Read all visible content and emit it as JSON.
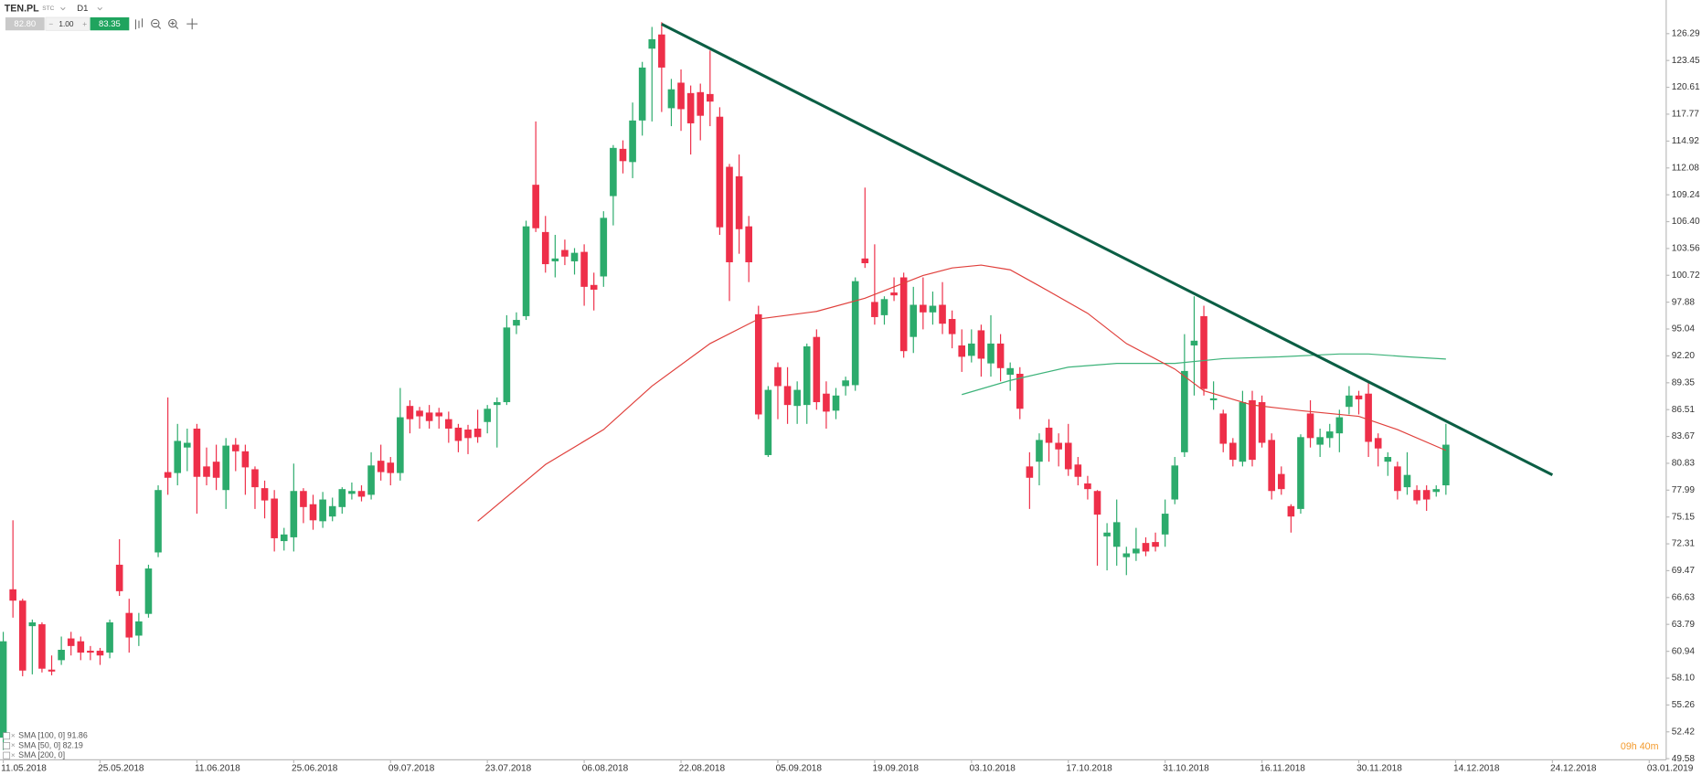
{
  "toolbar": {
    "symbol": "TEN.PL",
    "market": "STC",
    "interval": "D1",
    "bid": "82.80",
    "volume": "1.00",
    "ask": "83.35"
  },
  "chart_data": {
    "type": "candlestick",
    "categories": [
      "11.05.2018",
      null,
      null,
      null,
      null,
      null,
      null,
      null,
      null,
      null,
      "25.05.2018",
      null,
      null,
      null,
      null,
      null,
      null,
      null,
      null,
      null,
      "11.06.2018",
      null,
      null,
      null,
      null,
      null,
      null,
      null,
      null,
      null,
      "25.06.2018",
      null,
      null,
      null,
      null,
      null,
      null,
      null,
      null,
      null,
      "09.07.2018",
      null,
      null,
      null,
      null,
      null,
      null,
      null,
      null,
      null,
      "23.07.2018",
      null,
      null,
      null,
      null,
      null,
      null,
      null,
      null,
      null,
      "06.08.2018",
      null,
      null,
      null,
      null,
      null,
      null,
      null,
      null,
      null,
      "22.08.2018",
      null,
      null,
      null,
      null,
      null,
      null,
      null,
      null,
      null,
      "05.09.2018",
      null,
      null,
      null,
      null,
      null,
      null,
      null,
      null,
      null,
      "19.09.2018",
      null,
      null,
      null,
      null,
      null,
      null,
      null,
      null,
      null,
      "03.10.2018",
      null,
      null,
      null,
      null,
      null,
      null,
      null,
      null,
      null,
      "17.10.2018",
      null,
      null,
      null,
      null,
      null,
      null,
      null,
      null,
      null,
      "31.10.2018",
      null,
      null,
      null,
      null,
      null,
      null,
      null,
      null,
      null,
      "16.11.2018",
      null,
      null,
      null,
      null,
      null,
      null,
      null,
      null,
      null,
      "30.11.2018",
      null,
      null,
      null,
      null,
      null,
      null,
      null,
      null,
      null,
      "14.12.2018",
      null,
      null,
      null,
      null,
      null,
      null,
      null,
      null,
      null,
      "24.12.2018",
      null,
      null,
      null,
      null,
      null,
      null,
      null,
      null,
      null,
      "03.01.2019",
      null
    ],
    "open": [
      51.8,
      67.5,
      66.3,
      63.6,
      63.8,
      59.0,
      60.0,
      62.3,
      62.0,
      61.0,
      61.0,
      60.8,
      70.1,
      65.0,
      62.6,
      64.9,
      71.4,
      79.9,
      79.8,
      82.5,
      84.5,
      80.5,
      81.0,
      78.0,
      82.8,
      82.1,
      80.2,
      78.2,
      77.1,
      72.6,
      73.0,
      77.9,
      76.5,
      74.7,
      75.2,
      76.2,
      77.6,
      77.9,
      77.5,
      81.1,
      80.9,
      79.8,
      86.9,
      86.4,
      86.2,
      86.2,
      85.5,
      84.6,
      84.4,
      84.5,
      85.2,
      87.0,
      87.3,
      95.4,
      96.4,
      110.3,
      105.3,
      102.2,
      103.4,
      102.2,
      103.2,
      99.7,
      100.6,
      109.1,
      114.1,
      112.7,
      117.1,
      124.7,
      126.2,
      118.4,
      121.1,
      120.0,
      120.1,
      119.9,
      117.5,
      112.2,
      111.2,
      105.9,
      96.6,
      81.7,
      91.0,
      89.0,
      86.9,
      87.0,
      94.2,
      88.2,
      86.4,
      89.0,
      89.1,
      102.5,
      97.9,
      96.5,
      98.9,
      100.5,
      94.2,
      97.6,
      96.8,
      97.6,
      96.1,
      93.3,
      92.2,
      94.9,
      91.4,
      93.5,
      90.2,
      90.3,
      80.5,
      81.0,
      84.6,
      83.0,
      83.0,
      80.7,
      78.7,
      77.9,
      73.1,
      72.0,
      70.9,
      71.3,
      72.4,
      72.5,
      73.3,
      77.0,
      82.0,
      93.3,
      96.4,
      87.5,
      86.1,
      83.0,
      81.0,
      87.5,
      87.3,
      83.3,
      79.7,
      76.3,
      76.0,
      86.1,
      82.8,
      83.5,
      84.0,
      86.8,
      88.0,
      88.2,
      83.5,
      81.0,
      80.5,
      78.3,
      78.0,
      78.0,
      77.8,
      78.5,
      null,
      null,
      null,
      null,
      null,
      null,
      null,
      null,
      null,
      null,
      null,
      null,
      null,
      null,
      null,
      null,
      null,
      null,
      null,
      null,
      null,
      null
    ],
    "high": [
      63.0,
      74.8,
      66.5,
      64.3,
      64.0,
      60.5,
      62.5,
      63.0,
      62.5,
      61.5,
      61.3,
      64.3,
      72.8,
      66.5,
      65.0,
      70.1,
      78.5,
      87.8,
      85.0,
      84.5,
      85.0,
      82.5,
      82.8,
      83.5,
      83.5,
      82.8,
      80.5,
      79.0,
      78.0,
      74.0,
      80.8,
      78.2,
      77.5,
      77.8,
      77.2,
      78.3,
      78.8,
      78.5,
      82.0,
      82.8,
      81.5,
      88.8,
      87.5,
      86.8,
      87.0,
      86.7,
      86.3,
      85.0,
      84.9,
      86.5,
      87.0,
      87.8,
      96.5,
      96.8,
      106.5,
      117.0,
      107.0,
      105.0,
      104.5,
      103.6,
      104.0,
      101.0,
      107.5,
      114.5,
      115.0,
      119.0,
      123.3,
      127.0,
      127.5,
      121.5,
      122.5,
      120.8,
      121.0,
      124.5,
      118.5,
      112.5,
      113.5,
      107.0,
      97.5,
      89.0,
      91.5,
      91.0,
      89.5,
      93.5,
      95.0,
      89.5,
      88.8,
      90.0,
      100.5,
      110.0,
      104.0,
      98.5,
      100.5,
      101.0,
      99.5,
      100.5,
      99.0,
      100.0,
      97.0,
      95.0,
      95.0,
      95.5,
      96.5,
      94.5,
      91.5,
      91.0,
      82.0,
      84.0,
      85.5,
      84.0,
      85.0,
      81.5,
      79.5,
      78.0,
      74.5,
      77.0,
      72.0,
      74.0,
      73.0,
      73.5,
      77.0,
      81.5,
      94.5,
      98.5,
      97.5,
      89.5,
      86.5,
      83.5,
      88.5,
      88.5,
      88.0,
      84.0,
      80.5,
      76.5,
      83.9,
      87.5,
      84.5,
      85.0,
      86.5,
      89.0,
      88.5,
      89.5,
      84.0,
      82.0,
      81.0,
      82.0,
      78.5,
      78.5,
      78.5,
      85.0,
      null,
      null,
      null,
      null,
      null,
      null,
      null,
      null,
      null,
      null,
      null,
      null,
      null,
      null,
      null,
      null,
      null,
      null,
      null,
      null,
      null,
      null
    ],
    "low": [
      50.5,
      64.5,
      58.3,
      58.5,
      58.7,
      58.4,
      59.5,
      60.5,
      60.0,
      60.0,
      59.5,
      60.2,
      66.8,
      60.8,
      61.5,
      64.5,
      70.9,
      77.5,
      78.5,
      80.0,
      75.5,
      78.5,
      78.0,
      76.0,
      80.0,
      77.5,
      76.0,
      75.0,
      71.5,
      71.6,
      71.5,
      74.5,
      73.8,
      74.0,
      74.7,
      75.5,
      77.0,
      76.8,
      77.0,
      79.0,
      78.5,
      79.0,
      84.0,
      84.5,
      84.5,
      84.5,
      83.0,
      82.0,
      81.8,
      83.0,
      84.0,
      82.5,
      87.0,
      94.5,
      96.0,
      105.3,
      101.0,
      100.5,
      101.8,
      100.8,
      97.5,
      97.0,
      99.5,
      106.0,
      111.5,
      111.0,
      115.5,
      117.0,
      118.0,
      116.5,
      116.0,
      113.5,
      115.0,
      116.5,
      105.0,
      98.0,
      103.0,
      100.0,
      85.5,
      81.5,
      85.5,
      85.0,
      85.0,
      85.0,
      86.5,
      84.5,
      85.5,
      88.0,
      88.5,
      101.5,
      95.5,
      95.5,
      98.0,
      92.0,
      92.5,
      95.0,
      95.5,
      94.5,
      93.0,
      90.5,
      91.5,
      90.0,
      90.0,
      89.5,
      88.5,
      85.5,
      76.0,
      78.5,
      81.0,
      80.5,
      79.5,
      78.5,
      77.0,
      70.0,
      69.5,
      70.0,
      69.0,
      70.5,
      71.0,
      71.5,
      72.0,
      76.5,
      81.5,
      88.0,
      88.0,
      86.5,
      82.0,
      80.5,
      80.5,
      80.5,
      82.5,
      77.0,
      77.5,
      73.5,
      75.5,
      82.5,
      81.5,
      82.5,
      82.0,
      86.0,
      86.0,
      81.5,
      80.5,
      79.5,
      77.0,
      77.5,
      76.5,
      75.8,
      77.3,
      77.5,
      null,
      null,
      null,
      null,
      null,
      null,
      null,
      null,
      null,
      null,
      null,
      null,
      null,
      null,
      null,
      null,
      null,
      null,
      null,
      null,
      null,
      null
    ],
    "close": [
      62.0,
      66.3,
      58.9,
      64.0,
      59.1,
      58.8,
      61.1,
      61.5,
      60.8,
      60.8,
      60.5,
      64.0,
      67.3,
      62.4,
      64.1,
      69.7,
      78.0,
      79.3,
      83.2,
      83.0,
      79.4,
      79.4,
      79.3,
      82.7,
      82.1,
      80.4,
      78.3,
      76.9,
      72.9,
      73.3,
      77.9,
      76.2,
      74.8,
      77.0,
      76.3,
      78.1,
      77.9,
      77.3,
      80.6,
      79.9,
      79.8,
      85.7,
      85.5,
      85.8,
      85.3,
      85.8,
      84.5,
      83.2,
      83.5,
      83.6,
      86.6,
      87.3,
      95.2,
      96.0,
      105.9,
      105.7,
      101.9,
      102.5,
      102.7,
      103.1,
      99.5,
      99.2,
      106.8,
      114.2,
      112.8,
      117.1,
      122.7,
      125.7,
      122.7,
      120.4,
      118.3,
      116.8,
      117.6,
      119.1,
      105.8,
      102.1,
      105.6,
      102.1,
      86.0,
      88.6,
      89.0,
      87.0,
      88.6,
      93.2,
      87.3,
      86.3,
      88.0,
      89.6,
      100.1,
      102.0,
      96.3,
      98.2,
      98.6,
      92.7,
      97.6,
      96.8,
      97.5,
      95.6,
      94.5,
      92.1,
      93.5,
      91.9,
      93.5,
      90.9,
      90.9,
      86.6,
      79.3,
      83.3,
      83.0,
      82.3,
      80.2,
      79.4,
      78.1,
      75.4,
      73.5,
      74.6,
      71.3,
      71.8,
      71.5,
      72.0,
      75.5,
      80.6,
      90.6,
      93.8,
      88.7,
      87.7,
      82.9,
      81.2,
      87.3,
      81.2,
      83.0,
      77.9,
      78.1,
      75.2,
      83.6,
      83.5,
      83.6,
      84.2,
      85.7,
      88.0,
      87.6,
      83.1,
      82.4,
      81.5,
      77.9,
      79.6,
      76.9,
      77.0,
      78.1,
      82.8,
      null,
      null,
      null,
      null,
      null,
      null,
      null,
      null,
      null,
      null,
      null,
      null,
      null,
      null,
      null,
      null,
      null,
      null,
      null,
      null,
      null,
      null
    ],
    "up_color": "#2cab6c",
    "down_color": "#ee2f49",
    "overlays": [
      {
        "name": "SMA [100, 0] 91.86",
        "color": "#3db37a",
        "x": [
          99,
          104,
          110,
          115,
          121,
          126,
          132,
          138,
          141,
          145,
          149
        ],
        "values": [
          88.1,
          89.6,
          91.0,
          91.4,
          91.4,
          91.9,
          92.1,
          92.4,
          92.4,
          92.1,
          91.86
        ]
      },
      {
        "name": "SMA [50, 0] 82.19",
        "color": "#e0403c",
        "x": [
          49,
          56,
          62,
          67,
          73,
          78,
          84,
          89,
          95,
          98,
          101,
          104,
          107,
          112,
          116,
          121,
          124,
          129,
          134,
          140,
          144,
          149
        ],
        "values": [
          74.7,
          80.7,
          84.4,
          89.0,
          93.5,
          96.1,
          96.9,
          98.3,
          100.7,
          101.5,
          101.8,
          101.3,
          99.6,
          96.7,
          93.5,
          90.8,
          88.5,
          87.0,
          86.4,
          85.8,
          84.4,
          82.19
        ]
      },
      {
        "name": "SMA [200, 0]"
      }
    ],
    "trendline": {
      "color": "#0b5e44",
      "x": [
        68,
        160
      ],
      "values": [
        127.3,
        79.6
      ]
    },
    "ylim": [
      49.46,
      128.7
    ],
    "yticks": [
      126.29,
      123.45,
      120.61,
      117.77,
      114.92,
      112.08,
      109.24,
      {
        "value": 106.4,
        "label": "106.40"
      },
      103.56,
      100.72,
      97.88,
      95.04,
      {
        "value": 92.2,
        "label": "92.20"
      },
      89.35,
      86.51,
      83.67,
      80.83,
      77.99,
      75.15,
      72.31,
      69.47,
      66.63,
      63.79,
      60.94,
      {
        "value": 58.1,
        "label": "58.10"
      },
      55.26,
      52.42,
      49.58
    ],
    "timer": "09h 40m"
  }
}
